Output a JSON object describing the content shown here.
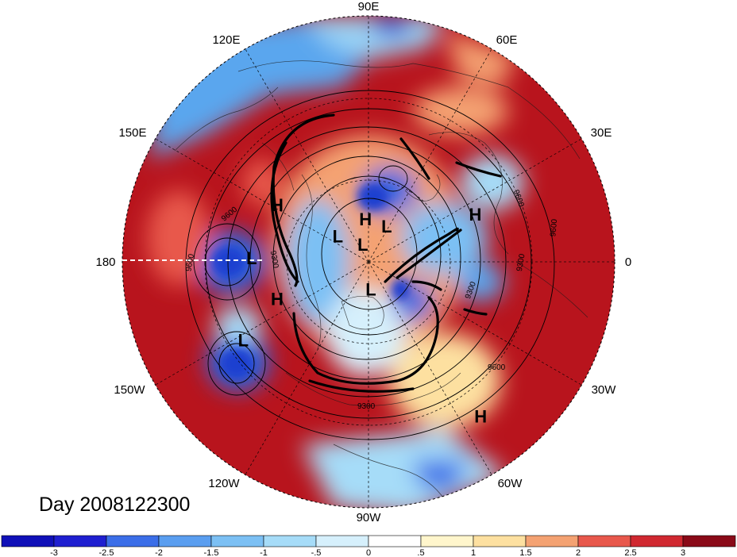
{
  "title": "Day 2008122300",
  "longitude_labels": [
    "90E",
    "60E",
    "30E",
    "0",
    "30W",
    "60W",
    "90W",
    "120W",
    "150W",
    "180",
    "150E",
    "120E"
  ],
  "pressure_centers": [
    {
      "type": "H",
      "lon": 148,
      "lat": 55
    },
    {
      "type": "H",
      "lon": 24,
      "lat": 52
    },
    {
      "type": "H",
      "lon": 94,
      "lat": 76
    },
    {
      "type": "H",
      "lon": -158,
      "lat": 58
    },
    {
      "type": "H",
      "lon": -54,
      "lat": 28
    },
    {
      "type": "L",
      "lon": 140,
      "lat": 77
    },
    {
      "type": "L",
      "lon": 63,
      "lat": 77
    },
    {
      "type": "L",
      "lon": 108,
      "lat": 84
    },
    {
      "type": "L",
      "lon": 178,
      "lat": 52
    },
    {
      "type": "L",
      "lon": -148,
      "lat": 42
    },
    {
      "type": "L",
      "lon": -85,
      "lat": 81
    }
  ],
  "contour_labels": [
    "9600",
    "9300",
    "9600",
    "9600",
    "9300",
    "9600",
    "9300",
    "9300",
    "9600"
  ],
  "colorbar": {
    "ticks": [
      "-3",
      "-2.5",
      "-2",
      "-1.5",
      "-1",
      "-.5",
      "0",
      ".5",
      "1",
      "1.5",
      "2",
      "2.5",
      "3"
    ],
    "colors": [
      "#1f1fd0",
      "#3b6ee8",
      "#5a9ef0",
      "#7cc0f4",
      "#a6dcf8",
      "#d6f0fc",
      "#ffffff",
      "#fff6cc",
      "#fde0a0",
      "#f4a272",
      "#e8584c",
      "#d02830",
      "#a0101e"
    ]
  },
  "colors": {
    "background": "#ffffff",
    "dominant_field": "#c5161f",
    "contour": "#000000"
  }
}
